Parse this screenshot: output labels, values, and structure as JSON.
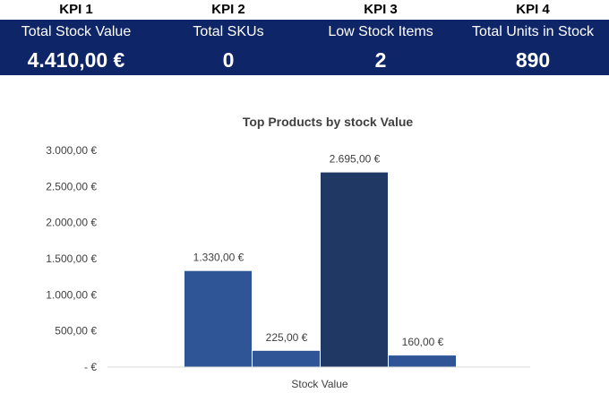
{
  "kpis": [
    {
      "id": "KPI 1",
      "label": "Total Stock Value",
      "value": "4.410,00 €"
    },
    {
      "id": "KPI 2",
      "label": "Total SKUs",
      "value": "0"
    },
    {
      "id": "KPI 3",
      "label": "Low Stock Items",
      "value": "2"
    },
    {
      "id": "KPI 4",
      "label": "Total Units in Stock",
      "value": "890"
    }
  ],
  "chart_data": {
    "type": "bar",
    "title": "Top Products by stock Value",
    "categories": [
      "Stock Value"
    ],
    "series": [
      {
        "values": [
          1330
        ],
        "label": "1.330,00 €",
        "color": "#2f5597"
      },
      {
        "values": [
          225
        ],
        "label": "225,00 €",
        "color": "#2f5597"
      },
      {
        "values": [
          2695
        ],
        "label": "2.695,00 €",
        "color": "#203864"
      },
      {
        "values": [
          160
        ],
        "label": "160,00 €",
        "color": "#2f5597"
      }
    ],
    "xlabel": "Stock Value",
    "ylim": [
      0,
      3000
    ],
    "yticks": [
      {
        "value": 0,
        "label": "-   €"
      },
      {
        "value": 500,
        "label": "500,00 €"
      },
      {
        "value": 1000,
        "label": "1.000,00 €"
      },
      {
        "value": 1500,
        "label": "1.500,00 €"
      },
      {
        "value": 2000,
        "label": "2.000,00 €"
      },
      {
        "value": 2500,
        "label": "2.500,00 €"
      },
      {
        "value": 3000,
        "label": "3.000,00 €"
      }
    ],
    "grid": false,
    "legend": "none"
  }
}
